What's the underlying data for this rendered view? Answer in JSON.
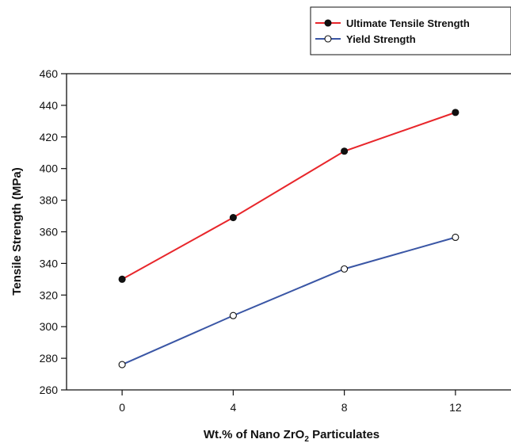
{
  "chart_data": {
    "type": "line",
    "title": "",
    "xlabel_main": "Wt.% of Nano ZrO",
    "xlabel_sub": "2",
    "xlabel_tail": " Particulates",
    "ylabel": "Tensile Strength (MPa)",
    "x": [
      0,
      4,
      8,
      12
    ],
    "x_ticks": [
      "0",
      "4",
      "8",
      "12"
    ],
    "xlim": [
      -2,
      14
    ],
    "ylim": [
      260,
      460
    ],
    "y_ticks": [
      "260",
      "280",
      "300",
      "320",
      "340",
      "360",
      "380",
      "400",
      "420",
      "440",
      "460"
    ],
    "grid": false,
    "legend_position": "top-right",
    "series": [
      {
        "name": "Ultimate Tensile Strength",
        "values": [
          330,
          369,
          411,
          435.5
        ],
        "color": "#e8262b",
        "marker": "filled-circle"
      },
      {
        "name": "Yield Strength",
        "values": [
          276,
          307,
          336.5,
          356.5
        ],
        "color": "#3a56a5",
        "marker": "open-circle"
      }
    ]
  }
}
